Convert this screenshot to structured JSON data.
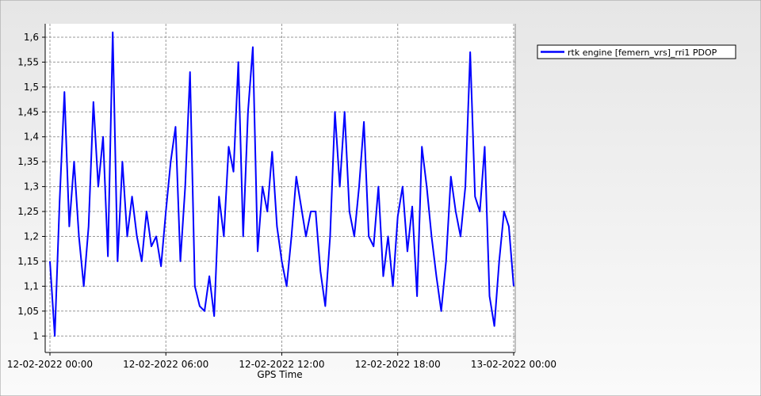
{
  "chart_data": {
    "type": "line",
    "x_label": "GPS Time",
    "x": [
      "12-02-2022 00:00",
      "12-02-2022 00:15",
      "12-02-2022 00:30",
      "12-02-2022 00:45",
      "12-02-2022 01:00",
      "12-02-2022 01:15",
      "12-02-2022 01:30",
      "12-02-2022 01:45",
      "12-02-2022 02:00",
      "12-02-2022 02:15",
      "12-02-2022 02:30",
      "12-02-2022 02:45",
      "12-02-2022 03:00",
      "12-02-2022 03:15",
      "12-02-2022 03:30",
      "12-02-2022 03:45",
      "12-02-2022 04:00",
      "12-02-2022 04:15",
      "12-02-2022 04:30",
      "12-02-2022 04:45",
      "12-02-2022 05:00",
      "12-02-2022 05:15",
      "12-02-2022 05:30",
      "12-02-2022 05:45",
      "12-02-2022 06:00",
      "12-02-2022 06:15",
      "12-02-2022 06:30",
      "12-02-2022 06:45",
      "12-02-2022 07:00",
      "12-02-2022 07:15",
      "12-02-2022 07:30",
      "12-02-2022 07:45",
      "12-02-2022 08:00",
      "12-02-2022 08:15",
      "12-02-2022 08:30",
      "12-02-2022 08:45",
      "12-02-2022 09:00",
      "12-02-2022 09:15",
      "12-02-2022 09:30",
      "12-02-2022 09:45",
      "12-02-2022 10:00",
      "12-02-2022 10:15",
      "12-02-2022 10:30",
      "12-02-2022 10:45",
      "12-02-2022 11:00",
      "12-02-2022 11:15",
      "12-02-2022 11:30",
      "12-02-2022 11:45",
      "12-02-2022 12:00",
      "12-02-2022 12:15",
      "12-02-2022 12:30",
      "12-02-2022 12:45",
      "12-02-2022 13:00",
      "12-02-2022 13:15",
      "12-02-2022 13:30",
      "12-02-2022 13:45",
      "12-02-2022 14:00",
      "12-02-2022 14:15",
      "12-02-2022 14:30",
      "12-02-2022 14:45",
      "12-02-2022 15:00",
      "12-02-2022 15:15",
      "12-02-2022 15:30",
      "12-02-2022 15:45",
      "12-02-2022 16:00",
      "12-02-2022 16:15",
      "12-02-2022 16:30",
      "12-02-2022 16:45",
      "12-02-2022 17:00",
      "12-02-2022 17:15",
      "12-02-2022 17:30",
      "12-02-2022 17:45",
      "12-02-2022 18:00",
      "12-02-2022 18:15",
      "12-02-2022 18:30",
      "12-02-2022 18:45",
      "12-02-2022 19:00",
      "12-02-2022 19:15",
      "12-02-2022 19:30",
      "12-02-2022 19:45",
      "12-02-2022 20:00",
      "12-02-2022 20:15",
      "12-02-2022 20:30",
      "12-02-2022 20:45",
      "12-02-2022 21:00",
      "12-02-2022 21:15",
      "12-02-2022 21:30",
      "12-02-2022 21:45",
      "12-02-2022 22:00",
      "12-02-2022 22:15",
      "12-02-2022 22:30",
      "12-02-2022 22:45",
      "12-02-2022 23:00",
      "12-02-2022 23:15",
      "12-02-2022 23:30",
      "12-02-2022 23:45",
      "13-02-2022 00:00"
    ],
    "series": [
      {
        "name": "rtk engine [femern_vrs]_rri1 PDOP",
        "color": "#0000ff",
        "values": [
          1.15,
          1.0,
          1.27,
          1.49,
          1.22,
          1.35,
          1.2,
          1.1,
          1.22,
          1.47,
          1.3,
          1.4,
          1.16,
          1.61,
          1.15,
          1.35,
          1.2,
          1.28,
          1.2,
          1.15,
          1.25,
          1.18,
          1.2,
          1.14,
          1.25,
          1.35,
          1.42,
          1.15,
          1.3,
          1.53,
          1.1,
          1.06,
          1.05,
          1.12,
          1.04,
          1.28,
          1.2,
          1.38,
          1.33,
          1.55,
          1.2,
          1.45,
          1.58,
          1.17,
          1.3,
          1.25,
          1.37,
          1.22,
          1.15,
          1.1,
          1.2,
          1.32,
          1.26,
          1.2,
          1.25,
          1.25,
          1.13,
          1.06,
          1.2,
          1.45,
          1.3,
          1.45,
          1.25,
          1.2,
          1.3,
          1.43,
          1.2,
          1.18,
          1.3,
          1.12,
          1.2,
          1.1,
          1.24,
          1.3,
          1.17,
          1.26,
          1.08,
          1.38,
          1.3,
          1.2,
          1.12,
          1.05,
          1.15,
          1.32,
          1.25,
          1.2,
          1.3,
          1.57,
          1.28,
          1.25,
          1.38,
          1.08,
          1.02,
          1.15,
          1.25,
          1.22,
          1.1
        ]
      }
    ],
    "xlim": [
      "12-02-2022 00:00",
      "13-02-2022 00:00"
    ],
    "xticks": [
      "12-02-2022 00:00",
      "12-02-2022 06:00",
      "12-02-2022 12:00",
      "12-02-2022 18:00",
      "13-02-2022 00:00"
    ],
    "ylim": [
      0.967,
      1.627
    ],
    "yticks": [
      1,
      {
        "value": 1.05,
        "label": "1,05"
      },
      {
        "value": 1.1,
        "label": "1,1"
      },
      {
        "value": 1.15,
        "label": "1,15"
      },
      {
        "value": 1.2,
        "label": "1,2"
      },
      {
        "value": 1.25,
        "label": "1,25"
      },
      {
        "value": 1.3,
        "label": "1,3"
      },
      {
        "value": 1.35,
        "label": "1,35"
      },
      {
        "value": 1.4,
        "label": "1,4"
      },
      {
        "value": 1.45,
        "label": "1,45"
      },
      {
        "value": 1.5,
        "label": "1,5"
      },
      {
        "value": 1.55,
        "label": "1,55"
      },
      {
        "value": 1.6,
        "label": "1,6"
      }
    ],
    "grid": true,
    "legend": "top-right"
  }
}
